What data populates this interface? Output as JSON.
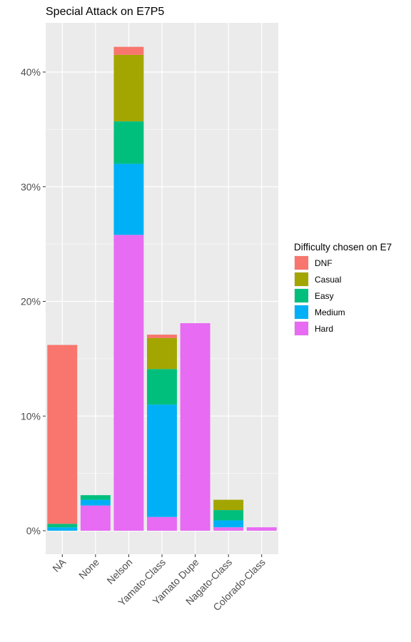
{
  "chart_data": {
    "type": "bar",
    "stacked": true,
    "title": "Special Attack on E7P5",
    "xlabel": "",
    "ylabel": "",
    "ylim": [
      0,
      0.44
    ],
    "y_ticks": [
      0,
      0.1,
      0.2,
      0.3,
      0.4
    ],
    "y_tick_labels": [
      "0%",
      "10%",
      "20%",
      "30%",
      "40%"
    ],
    "grid": true,
    "legend_position": "right",
    "legend_title": "Difficulty chosen on E7",
    "categories": [
      "NA",
      "None",
      "Nelson",
      "Yamato-Class",
      "Yamato Dupe",
      "Nagato-Class",
      "Colorado-Class"
    ],
    "series": [
      {
        "name": "Hard",
        "color": "#E76BF3",
        "values": [
          0.0,
          0.022,
          0.258,
          0.012,
          0.181,
          0.003,
          0.003
        ]
      },
      {
        "name": "Medium",
        "color": "#00B0F6",
        "values": [
          0.003,
          0.005,
          0.062,
          0.098,
          0.0,
          0.006,
          0.0
        ]
      },
      {
        "name": "Easy",
        "color": "#00BF7D",
        "values": [
          0.003,
          0.004,
          0.037,
          0.031,
          0.0,
          0.009,
          0.0
        ]
      },
      {
        "name": "Casual",
        "color": "#A3A500",
        "values": [
          0.0,
          0.0,
          0.058,
          0.027,
          0.0,
          0.009,
          0.0
        ]
      },
      {
        "name": "DNF",
        "color": "#F8766D",
        "values": [
          0.156,
          0.0,
          0.007,
          0.003,
          0.0,
          0.0,
          0.0
        ]
      }
    ],
    "legend_order": [
      "DNF",
      "Casual",
      "Easy",
      "Medium",
      "Hard"
    ]
  }
}
